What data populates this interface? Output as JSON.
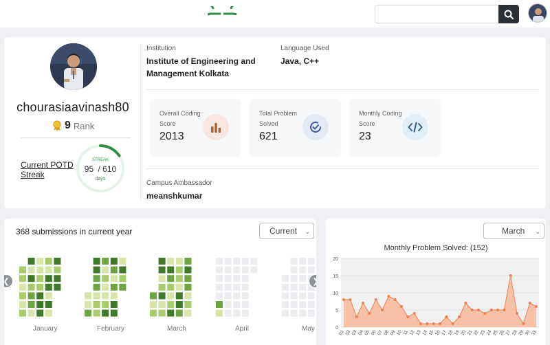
{
  "header": {
    "search_placeholder": "",
    "logo_icon": "gfg-logo-icon",
    "search_icon": "search-icon",
    "accent_color": "#2f8d46"
  },
  "profile": {
    "username": "chourasiaavinash80",
    "rank_value": "9",
    "rank_label": "Rank",
    "potd_label": "Current POTD Streak",
    "streak_label": "STREAK",
    "streak_current": "95",
    "streak_sep": "/",
    "streak_total": "610",
    "streak_unit": "days",
    "streak_fraction": 0.156,
    "institution_label": "Institution",
    "institution_value": "Institute of Engineering and Management Kolkata",
    "language_label": "Language Used",
    "language_value": "Java, C++",
    "ambassador_label": "Campus Ambassador",
    "ambassador_value": "meanshkumar"
  },
  "stats": [
    {
      "label": "Overall Coding Score",
      "value": "2013",
      "icon": "bar-chart-icon",
      "icon_bg": "#f7e7e0",
      "icon_color": "#a5673f"
    },
    {
      "label": "Total Problem Solved",
      "value": "621",
      "icon": "check-circle-icon",
      "icon_bg": "#e4e9f6",
      "icon_color": "#3b5ba5"
    },
    {
      "label": "Monthly Coding Score",
      "value": "23",
      "icon": "code-icon",
      "icon_bg": "#e0eef8",
      "icon_color": "#2b5d8a"
    }
  ],
  "submissions": {
    "title": "368 submissions in current year",
    "select_value": "Current",
    "months": [
      "January",
      "February",
      "March",
      "April",
      "May"
    ],
    "colors": [
      "#ebedf0",
      "#d7e6a8",
      "#a8cc6a",
      "#6da543",
      "#3e7a2a"
    ]
  },
  "chart_data": {
    "type": "area",
    "title": "Monthly Problem Solved: (152)",
    "select_value": "March",
    "categories": [
      "01",
      "02",
      "03",
      "04",
      "05",
      "06",
      "07",
      "08",
      "09",
      "10",
      "11",
      "12",
      "13",
      "14",
      "15",
      "16",
      "17",
      "18",
      "19",
      "20",
      "21",
      "22",
      "23",
      "24",
      "25",
      "26",
      "27",
      "28",
      "29",
      "30",
      "31"
    ],
    "series": [
      {
        "values": [
          8,
          8,
          3,
          7,
          4,
          8,
          5,
          9,
          8,
          6,
          3,
          4,
          1,
          1,
          1,
          1,
          3,
          1,
          3,
          7,
          5,
          5,
          4,
          5,
          5,
          5,
          15,
          4,
          1,
          7,
          6
        ]
      }
    ],
    "ylim": [
      0,
      20
    ],
    "yticks": [
      0,
      5,
      10,
      15,
      20
    ],
    "line_color": "#f08050",
    "fill_color": "#f8b89a"
  }
}
